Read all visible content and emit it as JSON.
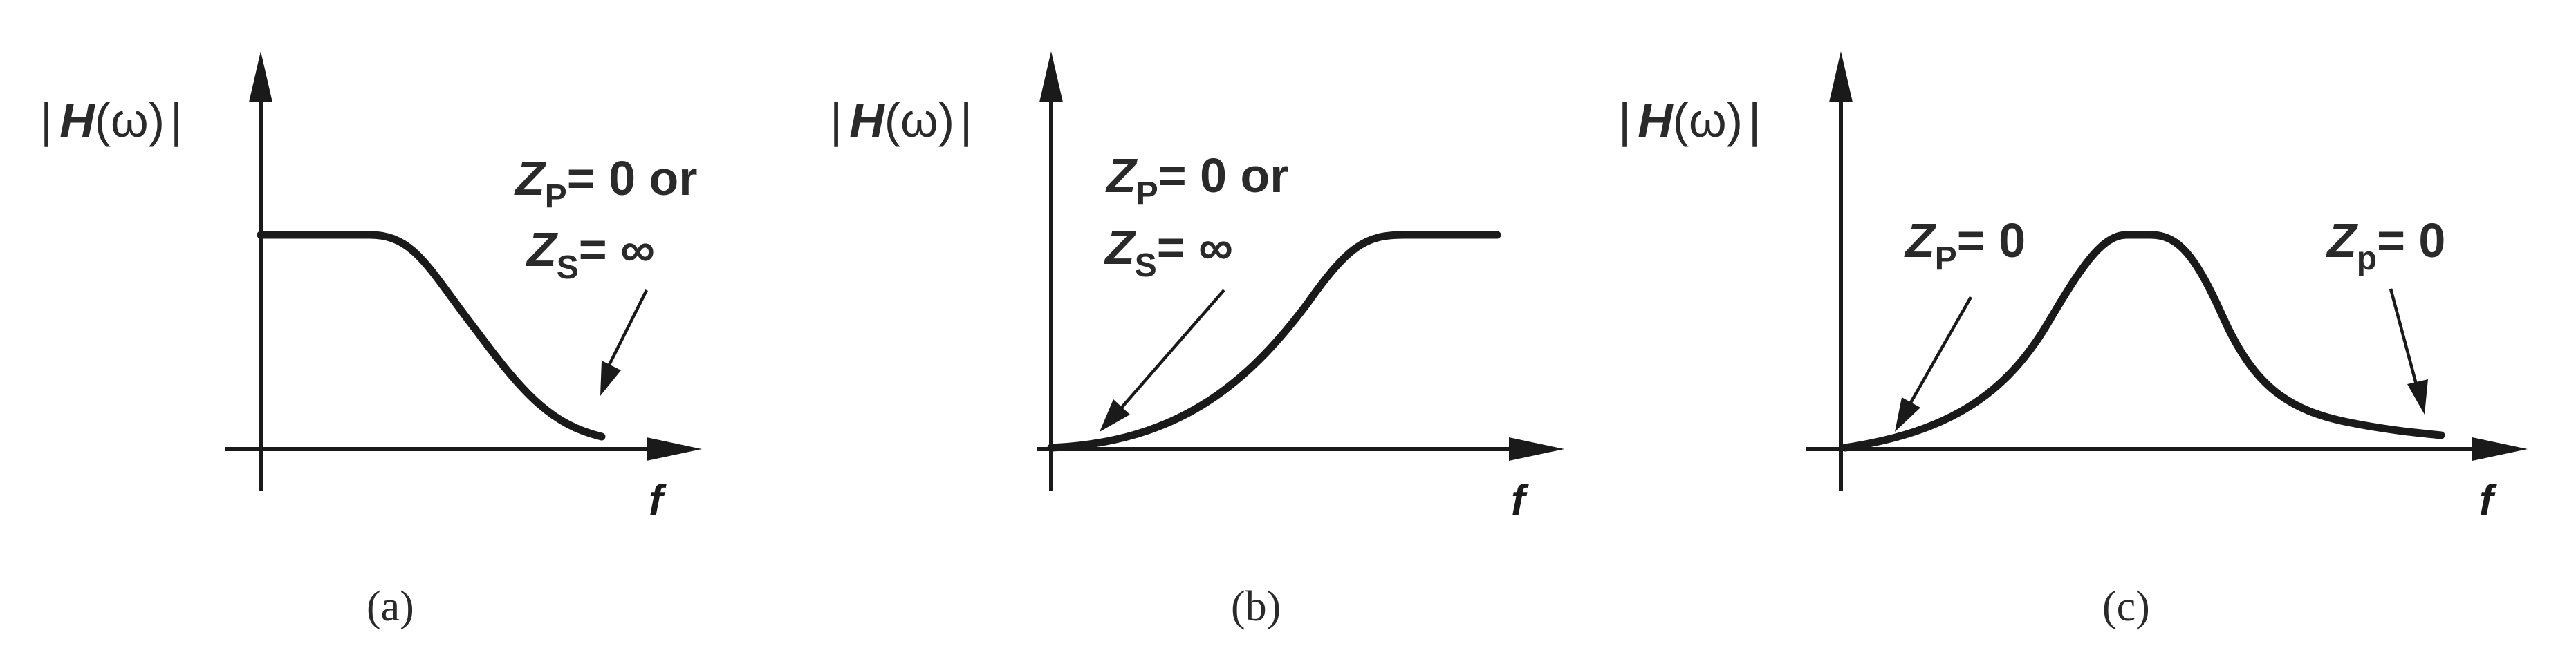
{
  "panels": [
    {
      "ylabel": {
        "bar_left": "|",
        "H": "H",
        "omega": "(ω)",
        "bar_right": "|"
      },
      "xlabel": "f",
      "annotation": {
        "line1": {
          "var": "Z",
          "sub": "P",
          "rest": "= 0 or"
        },
        "line2": {
          "var": "Z",
          "sub": "S",
          "rest": "= ∞"
        }
      },
      "caption": "(a)"
    },
    {
      "ylabel": {
        "bar_left": "|",
        "H": "H",
        "omega": "(ω)",
        "bar_right": "|"
      },
      "xlabel": "f",
      "annotation": {
        "line1": {
          "var": "Z",
          "sub": "P",
          "rest": "= 0 or"
        },
        "line2": {
          "var": "Z",
          "sub": "S",
          "rest": "= ∞"
        }
      },
      "caption": "(b)"
    },
    {
      "ylabel": {
        "bar_left": "|",
        "H": "H",
        "omega": "(ω)",
        "bar_right": "|"
      },
      "xlabel": "f",
      "annotation_left": {
        "var": "Z",
        "sub": "P",
        "rest": "= 0"
      },
      "annotation_right": {
        "var": "Z",
        "sub": "p",
        "rest": "= 0"
      },
      "caption": "(c)"
    }
  ]
}
